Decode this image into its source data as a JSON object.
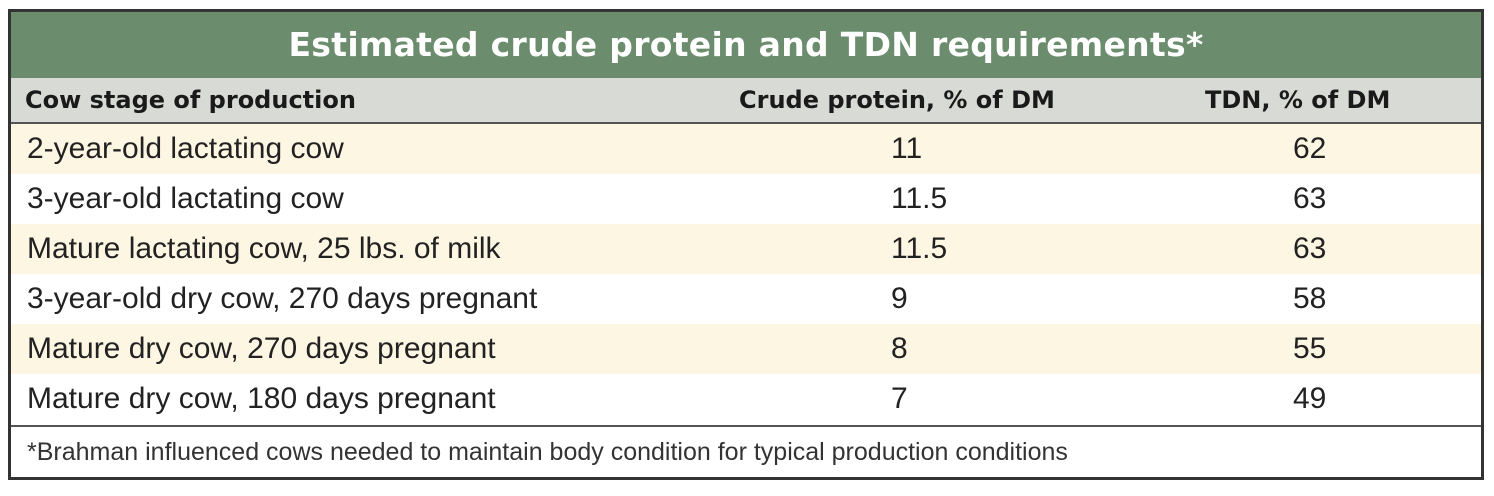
{
  "table": {
    "title": "Estimated crude protein and TDN requirements*",
    "columns": [
      "Cow stage of production",
      "Crude protein, % of DM",
      "TDN, % of DM"
    ],
    "rows": [
      [
        "2-year-old lactating cow",
        "11",
        "62"
      ],
      [
        "3-year-old lactating cow",
        "11.5",
        "63"
      ],
      [
        "Mature lactating cow, 25 lbs. of milk",
        "11.5",
        "63"
      ],
      [
        "3-year-old dry cow, 270 days pregnant",
        "9",
        "58"
      ],
      [
        "Mature dry cow, 270 days pregnant",
        "8",
        "55"
      ],
      [
        "Mature dry cow, 180 days pregnant",
        "7",
        "49"
      ]
    ],
    "footnote": "*Brahman influenced cows needed to maintain body condition for typical production conditions"
  },
  "colors": {
    "title_bar": "#6b8d6e",
    "header_bg": "#d8dad5",
    "row_alt_bg": "#fdf6e3",
    "border": "#333333"
  }
}
